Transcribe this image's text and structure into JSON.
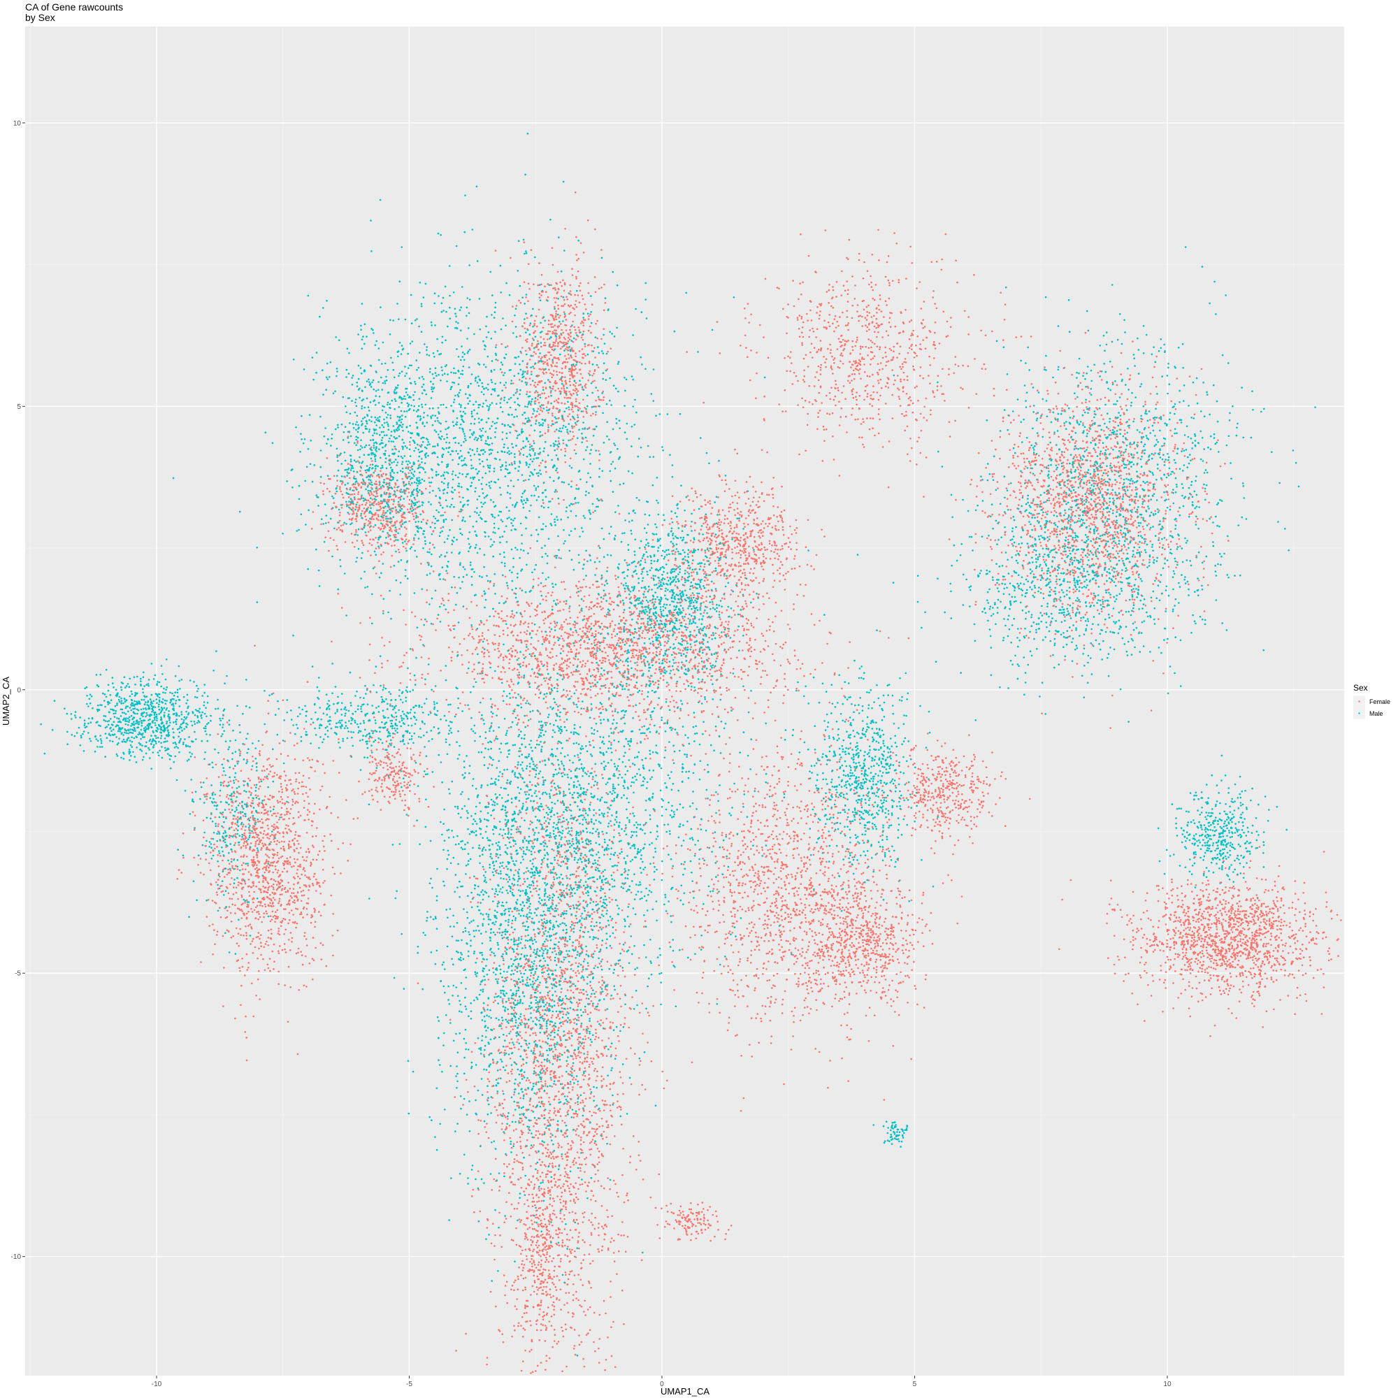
{
  "chart_data": {
    "type": "scatter",
    "title": "CA of Gene rawcounts",
    "subtitle": "by Sex",
    "xlabel": "UMAP1_CA",
    "ylabel": "UMAP2_CA",
    "xlim": [
      -12.6,
      13.5
    ],
    "ylim": [
      -12.1,
      11.7
    ],
    "x_ticks": [
      -10,
      -5,
      0,
      5,
      10
    ],
    "x_tick_labels": [
      "-10",
      "-5",
      "0",
      "5",
      "10"
    ],
    "y_ticks": [
      -10,
      -5,
      0,
      5,
      10
    ],
    "y_tick_labels": [
      "-10",
      "-5",
      "0",
      "5",
      "10"
    ],
    "grid": true,
    "legend": {
      "title": "Sex",
      "placement": "right",
      "entries": [
        "Female",
        "Male"
      ]
    },
    "colors": {
      "Female": "#F8766D",
      "Male": "#00BFC4",
      "panel": "#EBEBEB",
      "grid_major": "#FFFFFF",
      "grid_minor": "#F5F5F5"
    },
    "series": [
      {
        "name": "Female",
        "regions": [
          {
            "cx": -2.0,
            "cy": -6.5,
            "sx": 0.7,
            "sy": 2.8,
            "n": 2200
          },
          {
            "cx": -2.4,
            "cy": -10.0,
            "sx": 0.25,
            "sy": 0.8,
            "n": 300
          },
          {
            "cx": -1.0,
            "cy": 0.7,
            "sx": 1.8,
            "sy": 0.6,
            "n": 1800
          },
          {
            "cx": -2.0,
            "cy": 5.8,
            "sx": 0.4,
            "sy": 0.9,
            "n": 700
          },
          {
            "cx": -7.8,
            "cy": -3.0,
            "sx": 0.6,
            "sy": 1.0,
            "n": 1200
          },
          {
            "cx": -5.6,
            "cy": 3.2,
            "sx": 0.5,
            "sy": 0.4,
            "n": 500
          },
          {
            "cx": 2.5,
            "cy": -3.5,
            "sx": 1.0,
            "sy": 1.2,
            "n": 1300
          },
          {
            "cx": 4.0,
            "cy": -4.5,
            "sx": 0.6,
            "sy": 0.5,
            "n": 600
          },
          {
            "cx": 1.5,
            "cy": 2.6,
            "sx": 0.6,
            "sy": 0.5,
            "n": 600
          },
          {
            "cx": 8.5,
            "cy": 3.3,
            "sx": 0.9,
            "sy": 1.0,
            "n": 1500
          },
          {
            "cx": 4.0,
            "cy": 5.9,
            "sx": 1.0,
            "sy": 0.8,
            "n": 700
          },
          {
            "cx": 11.2,
            "cy": -4.4,
            "sx": 0.9,
            "sy": 0.5,
            "n": 1400
          },
          {
            "cx": 5.6,
            "cy": -1.8,
            "sx": 0.5,
            "sy": 0.4,
            "n": 400
          },
          {
            "cx": -5.3,
            "cy": -1.5,
            "sx": 0.3,
            "sy": 0.3,
            "n": 200
          },
          {
            "cx": 0.6,
            "cy": -9.4,
            "sx": 0.3,
            "sy": 0.15,
            "n": 120
          }
        ]
      },
      {
        "name": "Male",
        "regions": [
          {
            "cx": -2.6,
            "cy": -4.5,
            "sx": 0.9,
            "sy": 2.0,
            "n": 2000
          },
          {
            "cx": -1.5,
            "cy": -2.0,
            "sx": 1.4,
            "sy": 1.4,
            "n": 1500
          },
          {
            "cx": 0.2,
            "cy": 1.5,
            "sx": 0.6,
            "sy": 0.8,
            "n": 900
          },
          {
            "cx": -3.5,
            "cy": 4.2,
            "sx": 1.5,
            "sy": 1.5,
            "n": 2000
          },
          {
            "cx": -10.2,
            "cy": -0.5,
            "sx": 0.7,
            "sy": 0.35,
            "n": 800
          },
          {
            "cx": -8.5,
            "cy": -2.3,
            "sx": 0.4,
            "sy": 0.8,
            "n": 300
          },
          {
            "cx": -5.8,
            "cy": -0.5,
            "sx": 0.8,
            "sy": 0.3,
            "n": 400
          },
          {
            "cx": 4.0,
            "cy": -1.5,
            "sx": 0.5,
            "sy": 0.8,
            "n": 700
          },
          {
            "cx": 9.0,
            "cy": 3.6,
            "sx": 1.2,
            "sy": 1.2,
            "n": 1200
          },
          {
            "cx": 8.0,
            "cy": 1.8,
            "sx": 1.0,
            "sy": 0.8,
            "n": 700
          },
          {
            "cx": 11.0,
            "cy": -2.6,
            "sx": 0.4,
            "sy": 0.4,
            "n": 400
          },
          {
            "cx": 4.6,
            "cy": -7.8,
            "sx": 0.15,
            "sy": 0.1,
            "n": 60
          },
          {
            "cx": -5.5,
            "cy": 4.0,
            "sx": 0.6,
            "sy": 0.8,
            "n": 600
          }
        ]
      }
    ]
  }
}
